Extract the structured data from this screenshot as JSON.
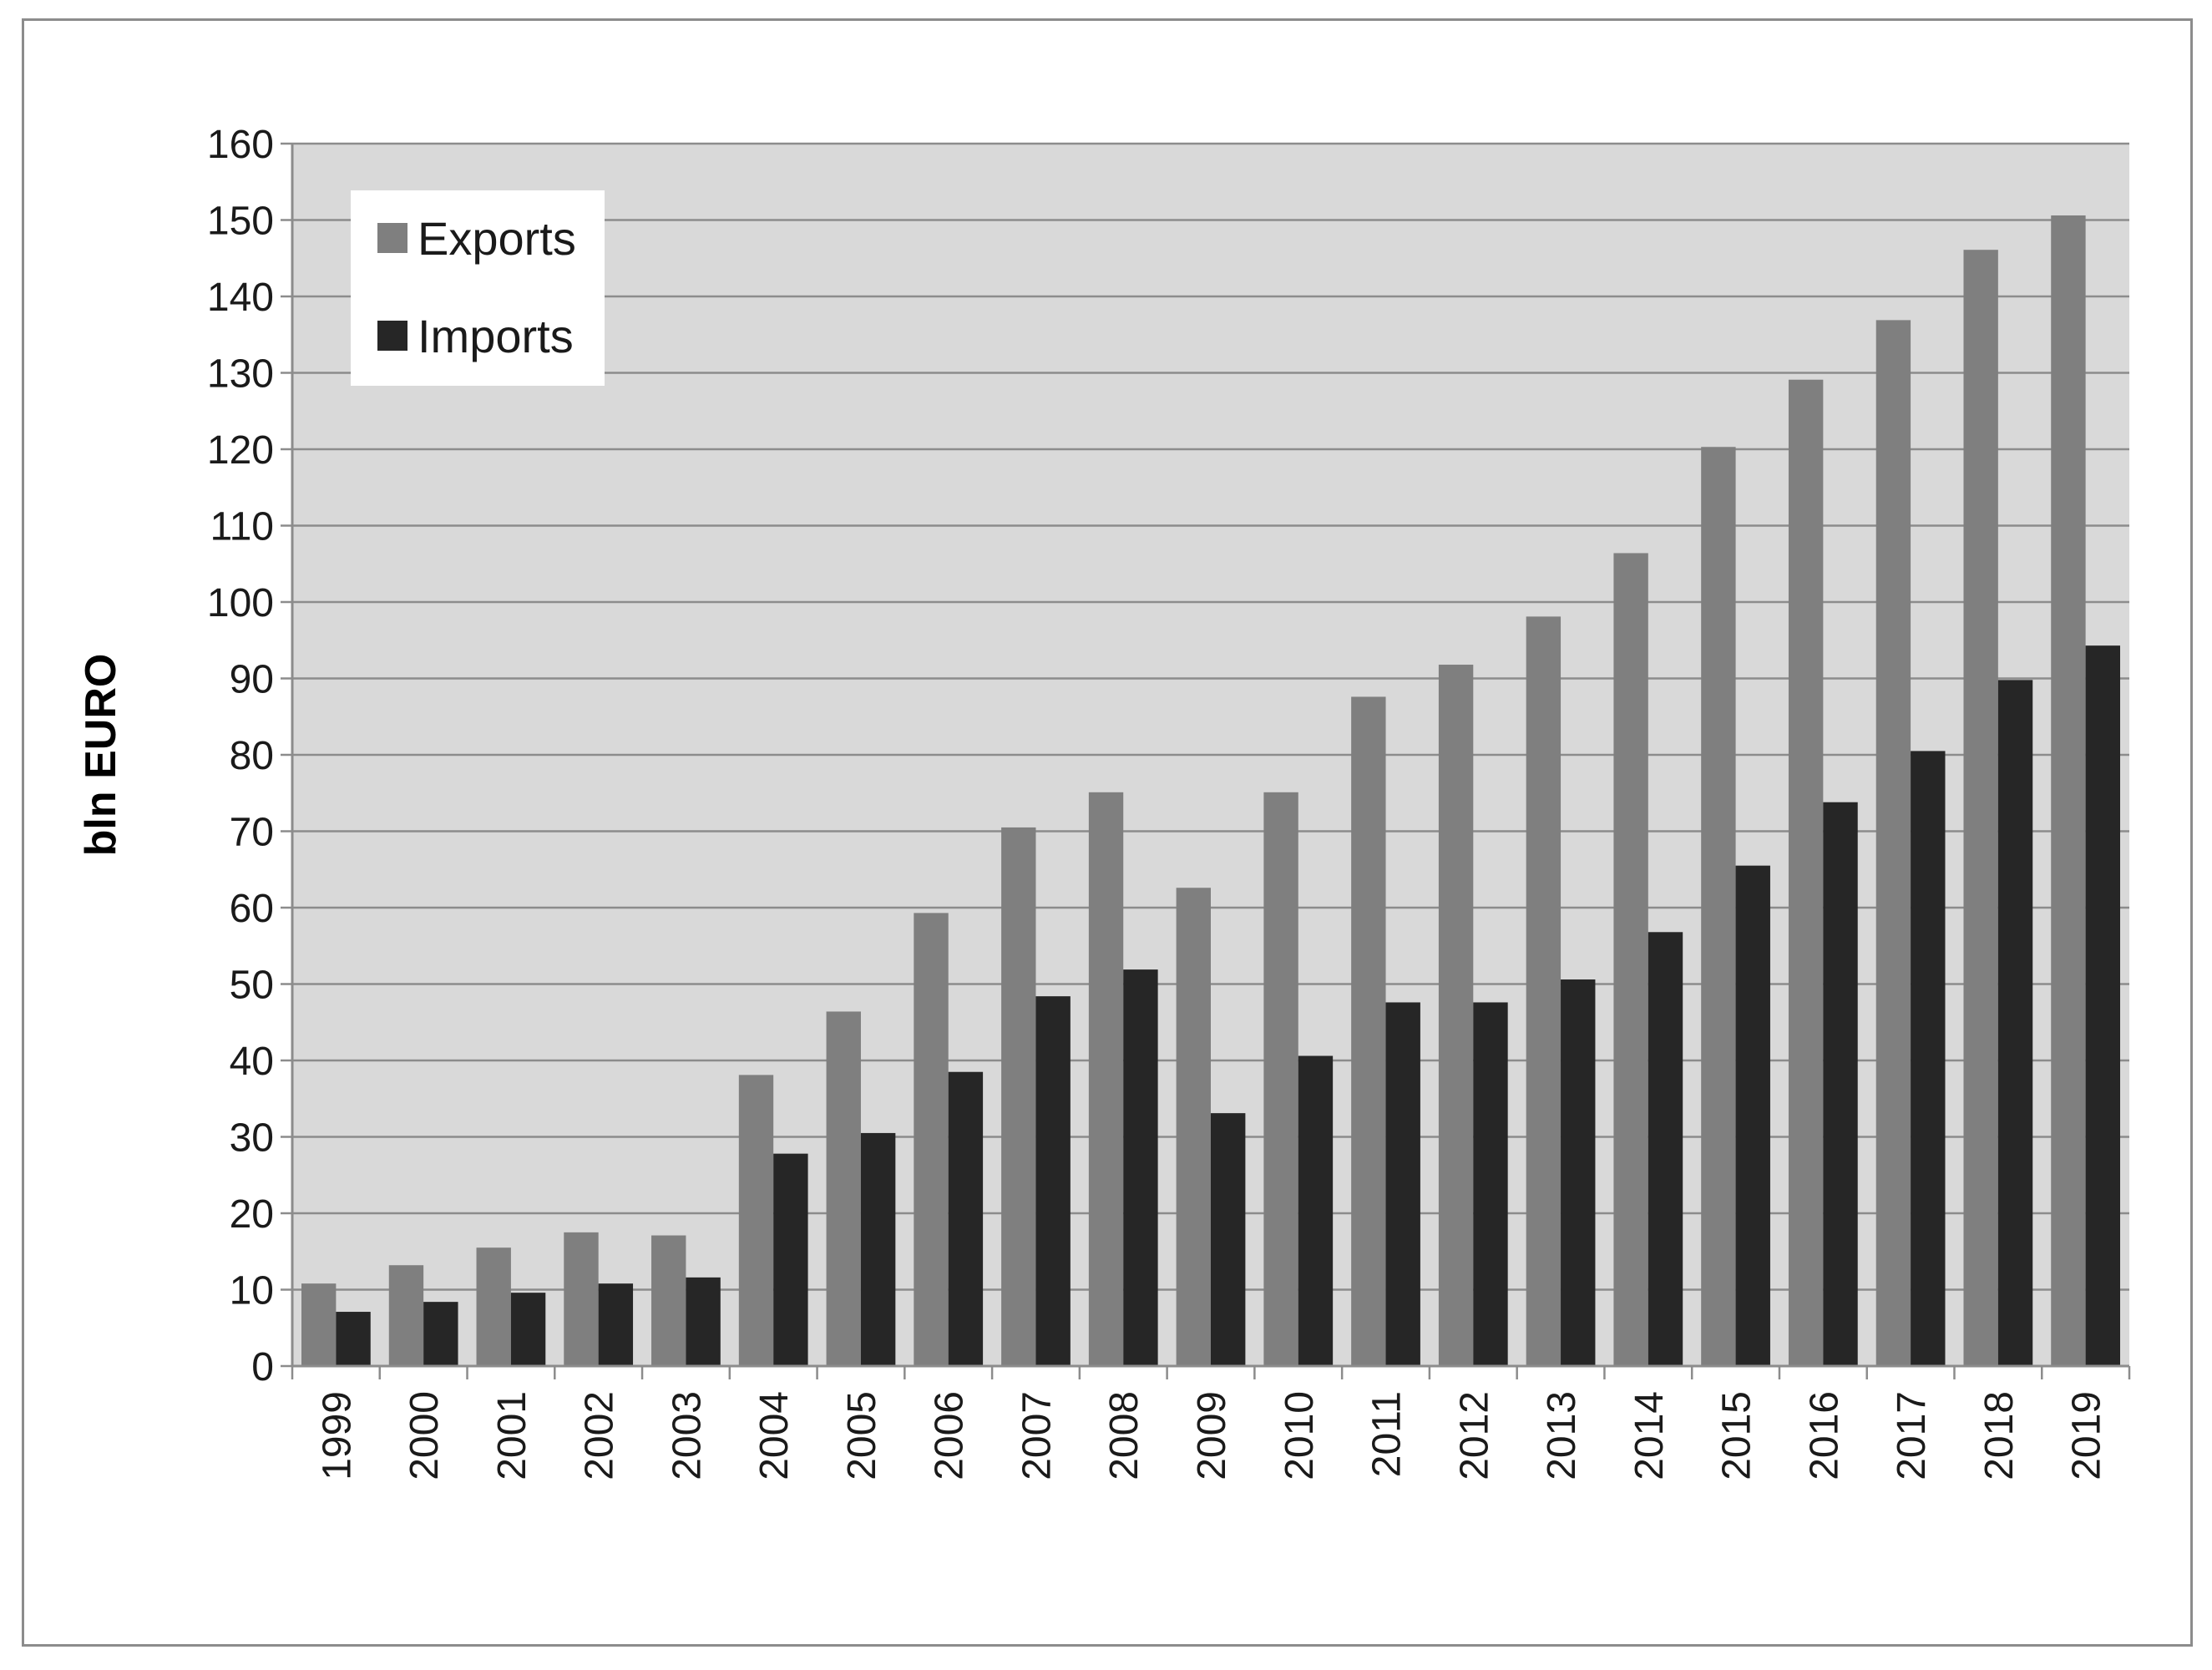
{
  "chart_data": {
    "type": "bar",
    "title": "",
    "xlabel": "",
    "ylabel": "bln EURO",
    "ylim": [
      0,
      160
    ],
    "ytick_step": 10,
    "yticks": [
      "0",
      "10",
      "20",
      "30",
      "40",
      "50",
      "60",
      "70",
      "80",
      "90",
      "100",
      "110",
      "120",
      "130",
      "140",
      "150",
      "160"
    ],
    "grid": true,
    "legend_position": "top-left",
    "categories": [
      "1999",
      "2000",
      "2001",
      "2002",
      "2003",
      "2004",
      "2005",
      "2006",
      "2007",
      "2008",
      "2009",
      "2010",
      "2011",
      "2012",
      "2013",
      "2014",
      "2015",
      "2016",
      "2017",
      "2018",
      "2019"
    ],
    "series": [
      {
        "name": "Exports",
        "color": "#7f7f7f",
        "values": [
          10.8,
          13.2,
          15.5,
          17.5,
          17.1,
          38.1,
          46.4,
          59.3,
          70.5,
          75.1,
          62.6,
          75.1,
          87.6,
          91.8,
          98.1,
          106.4,
          120.3,
          129.1,
          136.9,
          146.1,
          150.6
        ]
      },
      {
        "name": "Imports",
        "color": "#262626",
        "values": [
          7.1,
          8.4,
          9.6,
          10.8,
          11.6,
          27.8,
          30.5,
          38.5,
          48.4,
          51.9,
          33.1,
          40.6,
          47.6,
          47.6,
          50.6,
          56.8,
          65.5,
          73.8,
          80.5,
          89.8,
          94.3
        ]
      }
    ]
  },
  "colors": {
    "plot_background": "#d9d9d9",
    "grid": "#8c8c8c",
    "axis": "#8c8c8c",
    "frame": "#8c8c8c"
  }
}
